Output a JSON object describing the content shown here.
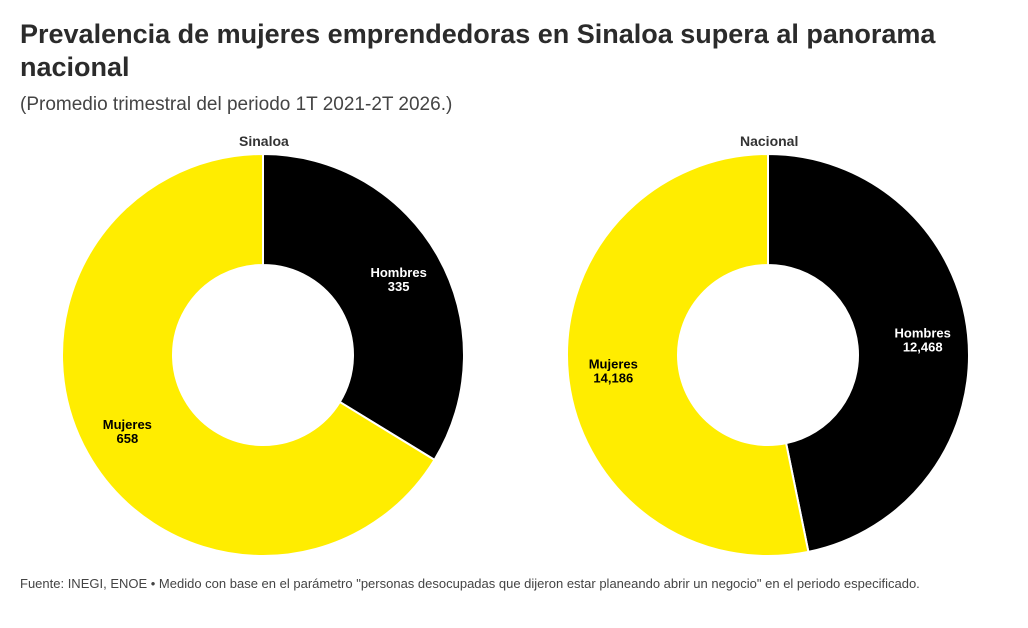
{
  "title": "Prevalencia de mujeres emprendedoras en Sinaloa supera al panorama nacional",
  "subtitle": "(Promedio trimestral del periodo 1T 2021-2T 2026.)",
  "footer": "Fuente: INEGI, ENOE • Medido con base en el parámetro \"personas desocupadas que dijeron estar planeando abrir un negocio\" en el periodo especificado.",
  "colors": {
    "hombres": "#000000",
    "mujeres": "#FFED00"
  },
  "chart_data": [
    {
      "type": "pie",
      "title": "Sinaloa",
      "categories": [
        "Hombres",
        "Mujeres"
      ],
      "values": [
        335,
        658
      ],
      "value_labels": [
        "335",
        "658"
      ]
    },
    {
      "type": "pie",
      "title": "Nacional",
      "categories": [
        "Hombres",
        "Mujeres"
      ],
      "values": [
        12468,
        14186
      ],
      "value_labels": [
        "12,468",
        "14,186"
      ]
    }
  ]
}
